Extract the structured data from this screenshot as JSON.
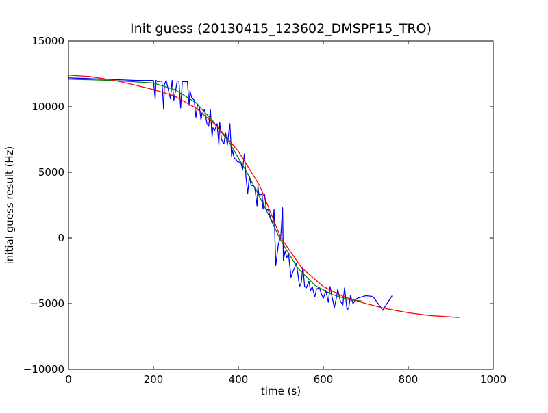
{
  "chart_data": {
    "type": "line",
    "title": "Init guess (20130415_123602_DMSPF15_TRO)",
    "xlabel": "time (s)",
    "ylabel": "initial guess result (Hz)",
    "xlim": [
      0,
      1000
    ],
    "ylim": [
      -10000,
      15000
    ],
    "xticks": [
      0,
      200,
      400,
      600,
      800,
      1000
    ],
    "yticks": [
      -10000,
      -5000,
      0,
      5000,
      10000,
      15000
    ],
    "xtick_labels": [
      "0",
      "200",
      "400",
      "600",
      "800",
      "1000"
    ],
    "ytick_labels": [
      "−10000",
      "−5000",
      "0",
      "5000",
      "10000",
      "15000"
    ],
    "grid": false,
    "legend": "none",
    "series": [
      {
        "color": "#0000ff",
        "x": [
          0,
          40,
          80,
          120,
          160,
          200,
          204,
          206,
          210,
          220,
          224,
          226,
          230,
          240,
          244,
          248,
          252,
          256,
          260,
          264,
          268,
          272,
          280,
          284,
          286,
          290,
          296,
          300,
          304,
          308,
          312,
          314,
          316,
          320,
          326,
          330,
          334,
          338,
          340,
          344,
          350,
          354,
          356,
          360,
          366,
          370,
          374,
          380,
          384,
          386,
          390,
          394,
          398,
          400,
          406,
          410,
          414,
          418,
          422,
          426,
          430,
          434,
          438,
          440,
          444,
          446,
          448,
          452,
          456,
          458,
          462,
          466,
          470,
          476,
          482,
          484,
          488,
          494,
          500,
          504,
          506,
          510,
          514,
          518,
          520,
          524,
          528,
          532,
          536,
          540,
          544,
          548,
          552,
          556,
          560,
          566,
          570,
          574,
          580,
          584,
          588,
          592,
          596,
          600,
          606,
          612,
          616,
          620,
          626,
          630,
          634,
          640,
          646,
          650,
          656,
          660,
          664,
          670,
          676,
          680,
          690,
          700,
          714,
          720,
          740,
          762
        ],
        "y": [
          12200,
          12150,
          12100,
          12050,
          12000,
          12000,
          10600,
          12000,
          11900,
          11950,
          9800,
          11700,
          12000,
          10600,
          12000,
          10500,
          11200,
          11950,
          11950,
          9900,
          11950,
          11900,
          11900,
          10100,
          11200,
          10700,
          10500,
          9200,
          10200,
          10000,
          9000,
          9400,
          9500,
          9800,
          8700,
          8500,
          9800,
          7700,
          8400,
          8200,
          8700,
          7100,
          8800,
          7500,
          7200,
          8000,
          7100,
          8700,
          6200,
          6700,
          6100,
          6000,
          5800,
          5800,
          5700,
          5200,
          6400,
          4600,
          3400,
          4700,
          4000,
          4000,
          3900,
          3500,
          2400,
          4000,
          3300,
          3300,
          3300,
          2200,
          3300,
          2100,
          2200,
          1500,
          1100,
          2200,
          -2100,
          -500,
          200,
          2300,
          -1700,
          -1000,
          -1500,
          -1200,
          -1800,
          -3000,
          -2600,
          -2300,
          -1900,
          -2700,
          -3700,
          -3400,
          -2200,
          -3700,
          -3800,
          -3300,
          -4000,
          -3700,
          -4500,
          -3900,
          -3800,
          -3900,
          -4300,
          -4600,
          -4000,
          -4900,
          -3700,
          -4400,
          -5300,
          -4700,
          -3900,
          -4800,
          -5100,
          -3800,
          -5500,
          -5300,
          -4400,
          -5000,
          -4700,
          -4600,
          -4500,
          -4400,
          -4450,
          -4600,
          -5500,
          -4400
        ]
      },
      {
        "color": "#008000",
        "x": [
          0,
          100,
          200,
          250,
          300,
          340,
          380,
          420,
          460,
          500,
          540,
          580,
          620,
          660,
          690
        ],
        "y": [
          12100,
          12000,
          11800,
          11300,
          10300,
          8900,
          7200,
          5000,
          2500,
          -200,
          -2300,
          -3600,
          -4300,
          -4700,
          -4800
        ]
      },
      {
        "color": "#ff0000",
        "x": [
          0,
          50,
          100,
          150,
          200,
          250,
          300,
          350,
          400,
          450,
          500,
          550,
          600,
          650,
          700,
          750,
          800,
          850,
          920
        ],
        "y": [
          12400,
          12300,
          12050,
          11700,
          11300,
          10800,
          9900,
          8500,
          6600,
          4000,
          0,
          -2300,
          -3700,
          -4500,
          -5000,
          -5400,
          -5700,
          -5900,
          -6050
        ]
      }
    ]
  }
}
